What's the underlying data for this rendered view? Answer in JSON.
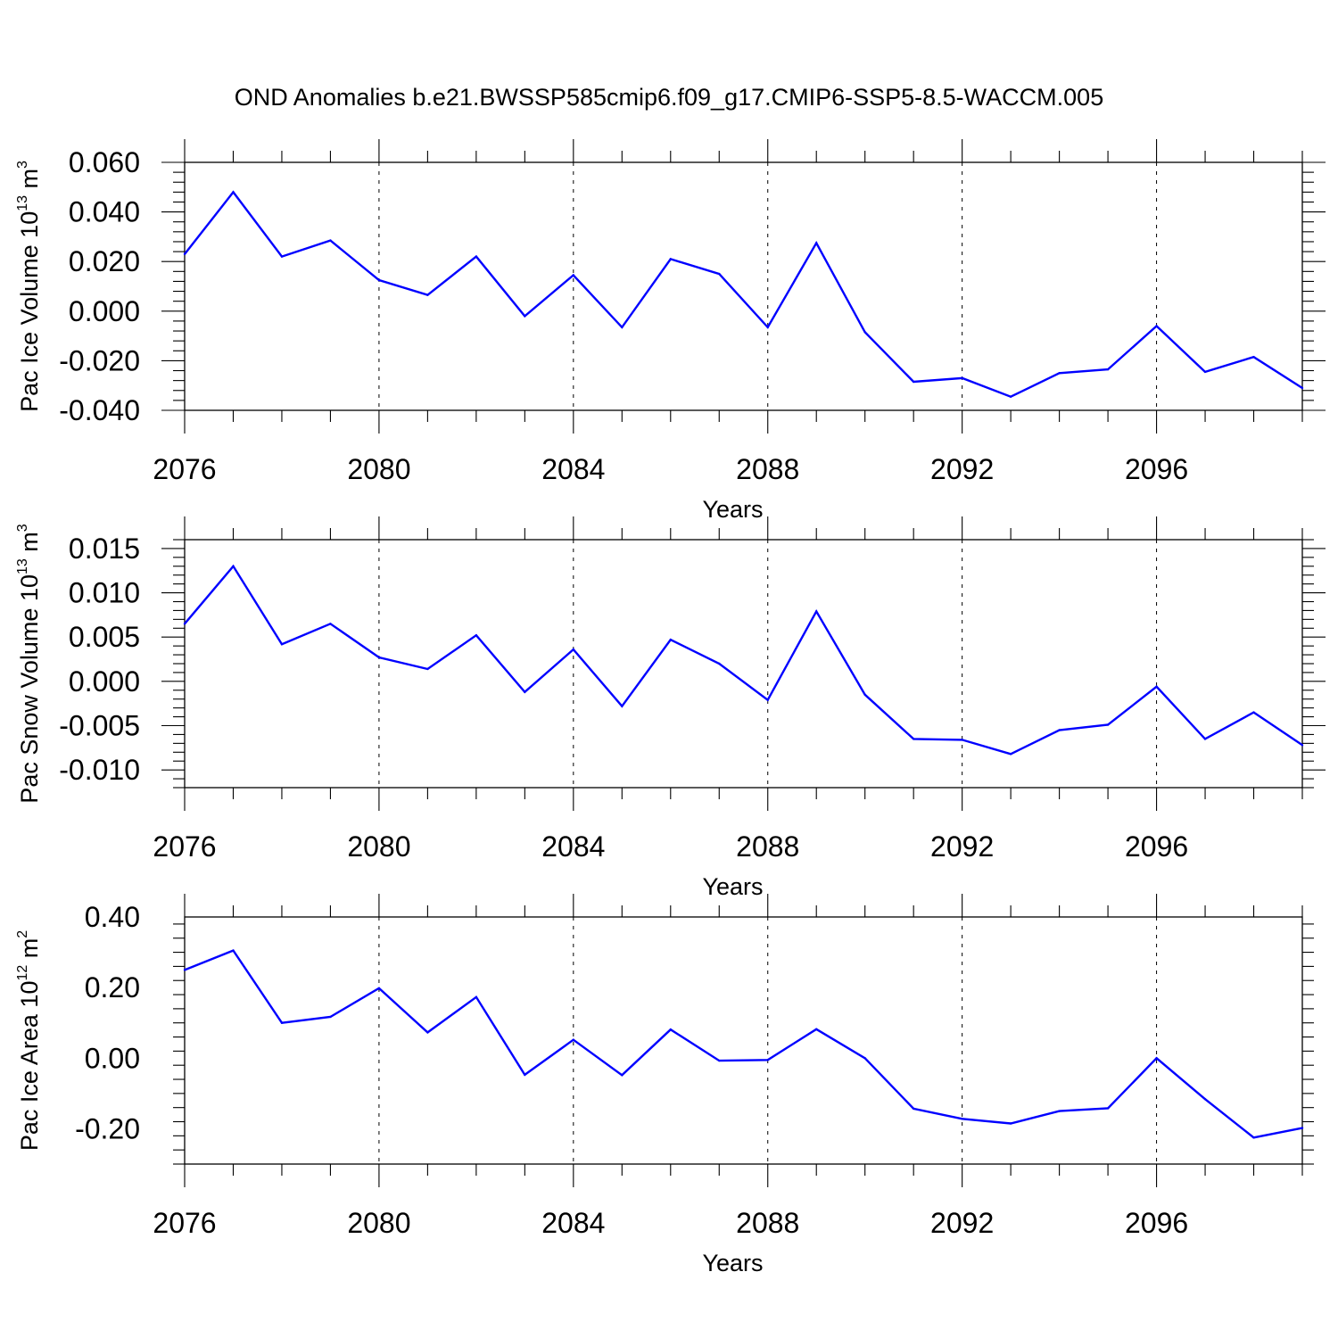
{
  "figure": {
    "title": "OND Anomalies b.e21.BWSSP585cmip6.f09_g17.CMIP6-SSP5-8.5-WACCM.005"
  },
  "chart_data": [
    {
      "type": "line",
      "ylabel": "Pac Ice Volume 10",
      "ylabel_exp": "13",
      "ylabel_unit": " m",
      "ylabel_unit_exp": "3",
      "xlabel": "Years",
      "xlim": [
        2076,
        2099
      ],
      "ylim": [
        -0.04,
        0.06
      ],
      "yticks": [
        -0.04,
        -0.02,
        0.0,
        0.02,
        0.04,
        0.06
      ],
      "ytick_labels": [
        "-0.040",
        "-0.020",
        "0.000",
        "0.020",
        "0.040",
        "0.060"
      ],
      "xticks": [
        2076,
        2080,
        2084,
        2088,
        2092,
        2096
      ],
      "xtick_labels": [
        "2076",
        "2080",
        "2084",
        "2088",
        "2092",
        "2096"
      ],
      "grid": "dashed vertical at major x ticks",
      "color": "#0000ff",
      "x": [
        2076,
        2077,
        2078,
        2079,
        2080,
        2081,
        2082,
        2083,
        2084,
        2085,
        2086,
        2087,
        2088,
        2089,
        2090,
        2091,
        2092,
        2093,
        2094,
        2095,
        2096,
        2097,
        2098,
        2099
      ],
      "y": [
        0.023,
        0.048,
        0.022,
        0.0285,
        0.0125,
        0.0065,
        0.022,
        -0.002,
        0.0145,
        -0.0065,
        0.021,
        0.015,
        -0.0065,
        0.0275,
        -0.0085,
        -0.0285,
        -0.027,
        -0.0345,
        -0.025,
        -0.0235,
        -0.006,
        -0.0245,
        -0.0185,
        -0.031
      ]
    },
    {
      "type": "line",
      "ylabel": "Pac Snow Volume 10",
      "ylabel_exp": "13",
      "ylabel_unit": " m",
      "ylabel_unit_exp": "3",
      "xlabel": "Years",
      "xlim": [
        2076,
        2099
      ],
      "ylim": [
        -0.012,
        0.016
      ],
      "yticks": [
        -0.01,
        -0.005,
        0.0,
        0.005,
        0.01,
        0.015
      ],
      "ytick_labels": [
        "-0.010",
        "-0.005",
        "0.000",
        "0.005",
        "0.010",
        "0.015"
      ],
      "xticks": [
        2076,
        2080,
        2084,
        2088,
        2092,
        2096
      ],
      "xtick_labels": [
        "2076",
        "2080",
        "2084",
        "2088",
        "2092",
        "2096"
      ],
      "grid": "dashed vertical at major x ticks",
      "color": "#0000ff",
      "x": [
        2076,
        2077,
        2078,
        2079,
        2080,
        2081,
        2082,
        2083,
        2084,
        2085,
        2086,
        2087,
        2088,
        2089,
        2090,
        2091,
        2092,
        2093,
        2094,
        2095,
        2096,
        2097,
        2098,
        2099
      ],
      "y": [
        0.0065,
        0.013,
        0.0042,
        0.0065,
        0.0027,
        0.0014,
        0.0052,
        -0.0012,
        0.0036,
        -0.0028,
        0.0047,
        0.002,
        -0.0021,
        0.0079,
        -0.0015,
        -0.0065,
        -0.0066,
        -0.0082,
        -0.0055,
        -0.0049,
        -0.0006,
        -0.0065,
        -0.0035,
        -0.0072
      ]
    },
    {
      "type": "line",
      "ylabel": "Pac Ice Area 10",
      "ylabel_exp": "12",
      "ylabel_unit": " m",
      "ylabel_unit_exp": "2",
      "xlabel": "Years",
      "xlim": [
        2076,
        2099
      ],
      "ylim": [
        -0.3,
        0.4
      ],
      "yticks": [
        -0.2,
        0.0,
        0.2,
        0.4
      ],
      "ytick_labels": [
        "-0.20",
        "0.00",
        "0.20",
        "0.40"
      ],
      "xticks": [
        2076,
        2080,
        2084,
        2088,
        2092,
        2096
      ],
      "xtick_labels": [
        "2076",
        "2080",
        "2084",
        "2088",
        "2092",
        "2096"
      ],
      "grid": "dashed vertical at major x ticks",
      "color": "#0000ff",
      "x": [
        2076,
        2077,
        2078,
        2079,
        2080,
        2081,
        2082,
        2083,
        2084,
        2085,
        2086,
        2087,
        2088,
        2089,
        2090,
        2091,
        2092,
        2093,
        2094,
        2095,
        2096,
        2097,
        2098,
        2099
      ],
      "y": [
        0.25,
        0.305,
        0.1,
        0.117,
        0.198,
        0.073,
        0.173,
        -0.047,
        0.052,
        -0.048,
        0.081,
        -0.007,
        -0.005,
        0.082,
        0.0,
        -0.143,
        -0.172,
        -0.185,
        -0.15,
        -0.142,
        0.0,
        -0.116,
        -0.225,
        -0.198
      ]
    }
  ]
}
